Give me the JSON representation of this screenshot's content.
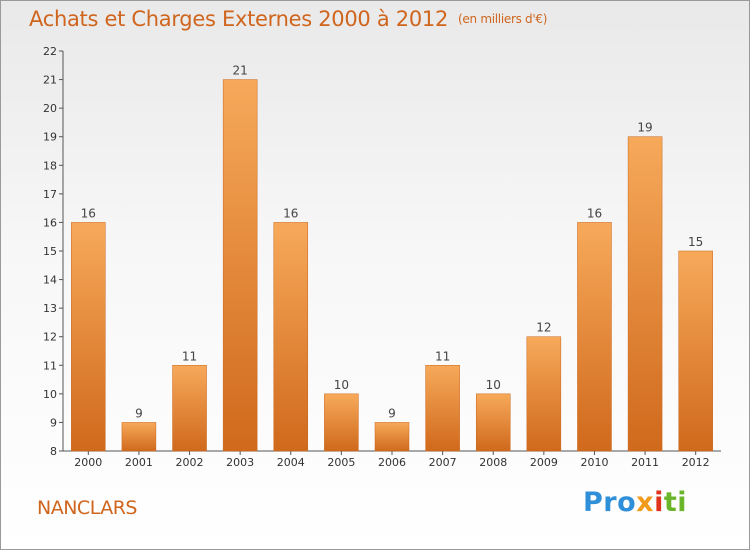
{
  "title": "Achats et Charges Externes 2000 à 2012",
  "unit_note": "(en milliers d'€)",
  "commune": "NANCLARS",
  "logo": {
    "text": "Proxiti",
    "parts": [
      "Pro",
      "x",
      "i",
      "ti"
    ]
  },
  "colors": {
    "bar_top": "#f7a95a",
    "bar_bottom": "#d0691c",
    "title": "#d0651e"
  },
  "chart_data": {
    "type": "bar",
    "title": "Achats et Charges Externes 2000 à 2012",
    "subtitle": "(en milliers d'€)",
    "xlabel": "",
    "ylabel": "",
    "categories": [
      "2000",
      "2001",
      "2002",
      "2003",
      "2004",
      "2005",
      "2006",
      "2007",
      "2008",
      "2009",
      "2010",
      "2011",
      "2012"
    ],
    "values": [
      16,
      9,
      11,
      21,
      16,
      10,
      9,
      11,
      10,
      12,
      16,
      19,
      15
    ],
    "ylim": [
      8,
      22
    ],
    "yticks": [
      8,
      9,
      10,
      11,
      12,
      13,
      14,
      15,
      16,
      17,
      18,
      19,
      20,
      21,
      22
    ],
    "grid": false,
    "legend": "none"
  }
}
